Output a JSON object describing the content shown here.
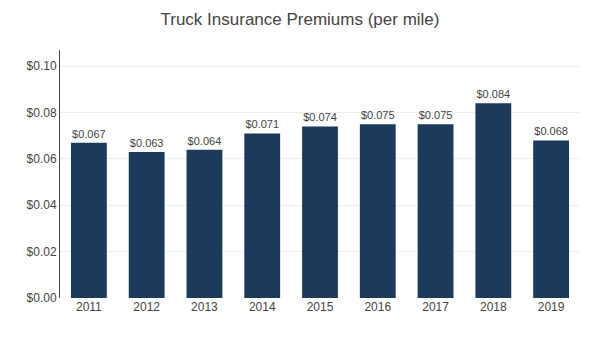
{
  "chart_data": {
    "type": "bar",
    "title": "Truck Insurance Premiums (per mile)",
    "categories": [
      "2011",
      "2012",
      "2013",
      "2014",
      "2015",
      "2016",
      "2017",
      "2018",
      "2019"
    ],
    "values": [
      0.067,
      0.063,
      0.064,
      0.071,
      0.074,
      0.075,
      0.075,
      0.084,
      0.068
    ],
    "value_labels": [
      "$0.067",
      "$0.063",
      "$0.064",
      "$0.071",
      "$0.074",
      "$0.075",
      "$0.075",
      "$0.084",
      "$0.068"
    ],
    "data_labels": true,
    "color": "#1b3a5c",
    "ylim": [
      0,
      0.107
    ],
    "yticks": [
      {
        "value": 0.0,
        "label": "$0.00"
      },
      {
        "value": 0.02,
        "label": "$0.02"
      },
      {
        "value": 0.04,
        "label": "$0.04"
      },
      {
        "value": 0.06,
        "label": "$0.06"
      },
      {
        "value": 0.08,
        "label": "$0.08"
      },
      {
        "value": 0.1,
        "label": "$0.10"
      }
    ],
    "grid": true
  }
}
